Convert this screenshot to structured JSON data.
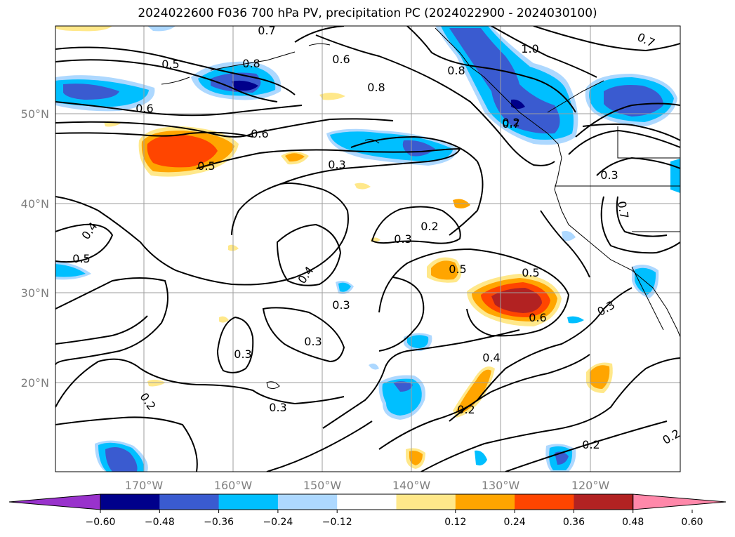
{
  "title": "2024022600 F036 700 hPa PV, precipitation PC (2024022900 - 2024030100)",
  "lat_labels": [
    "50°N",
    "40°N",
    "30°N",
    "20°N"
  ],
  "lon_labels": [
    "170°W",
    "160°W",
    "150°W",
    "140°W",
    "130°W",
    "120°W"
  ],
  "colorbar": {
    "ticks": [
      "−0.60",
      "−0.48",
      "−0.36",
      "−0.24",
      "−0.12",
      "0.12",
      "0.24",
      "0.36",
      "0.48",
      "0.60"
    ],
    "colors": [
      "#9932cc",
      "#00008b",
      "#3a5bd0",
      "#00bfff",
      "#add8ff",
      "#ffffff",
      "#ffe88a",
      "#ffa500",
      "#ff4500",
      "#b22222",
      "#ff88aa"
    ]
  },
  "contour_labels": [
    {
      "text": "0.5"
    },
    {
      "text": "0.8"
    },
    {
      "text": "0.6"
    },
    {
      "text": "0.8"
    },
    {
      "text": "0.8"
    },
    {
      "text": "1.0"
    },
    {
      "text": "0.7"
    },
    {
      "text": "0.6"
    },
    {
      "text": "0.6"
    },
    {
      "text": "0.5"
    },
    {
      "text": "0.7"
    },
    {
      "text": "0.3"
    },
    {
      "text": "0.3"
    },
    {
      "text": "0.2"
    },
    {
      "text": "0.3"
    },
    {
      "text": "0.4"
    },
    {
      "text": "0.5"
    },
    {
      "text": "0.4"
    },
    {
      "text": "0.5"
    },
    {
      "text": "0.5"
    },
    {
      "text": "0.3"
    },
    {
      "text": "0.6"
    },
    {
      "text": "0.3"
    },
    {
      "text": "0.3"
    },
    {
      "text": "0.3"
    },
    {
      "text": "0.4"
    },
    {
      "text": "0.2"
    },
    {
      "text": "0.3"
    },
    {
      "text": "0.2"
    },
    {
      "text": "0.2"
    },
    {
      "text": "0.2"
    },
    {
      "text": "0.7"
    },
    {
      "text": "0.2"
    },
    {
      "text": "0.7"
    }
  ]
}
